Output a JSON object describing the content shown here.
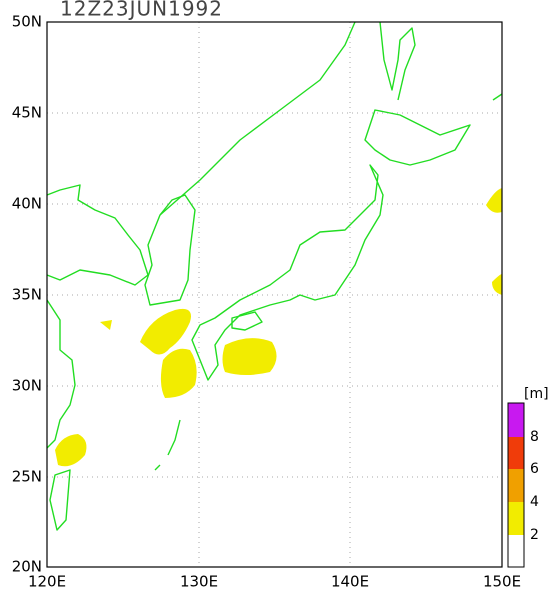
{
  "title": "12Z23JUN1992",
  "latitude_labels": [
    "50N",
    "45N",
    "40N",
    "35N",
    "30N",
    "25N",
    "20N"
  ],
  "longitude_labels": [
    "120E",
    "130E",
    "140E",
    "150E"
  ],
  "colorbar": {
    "unit": "[m]",
    "levels": [
      "8",
      "6",
      "4",
      "2"
    ]
  }
}
